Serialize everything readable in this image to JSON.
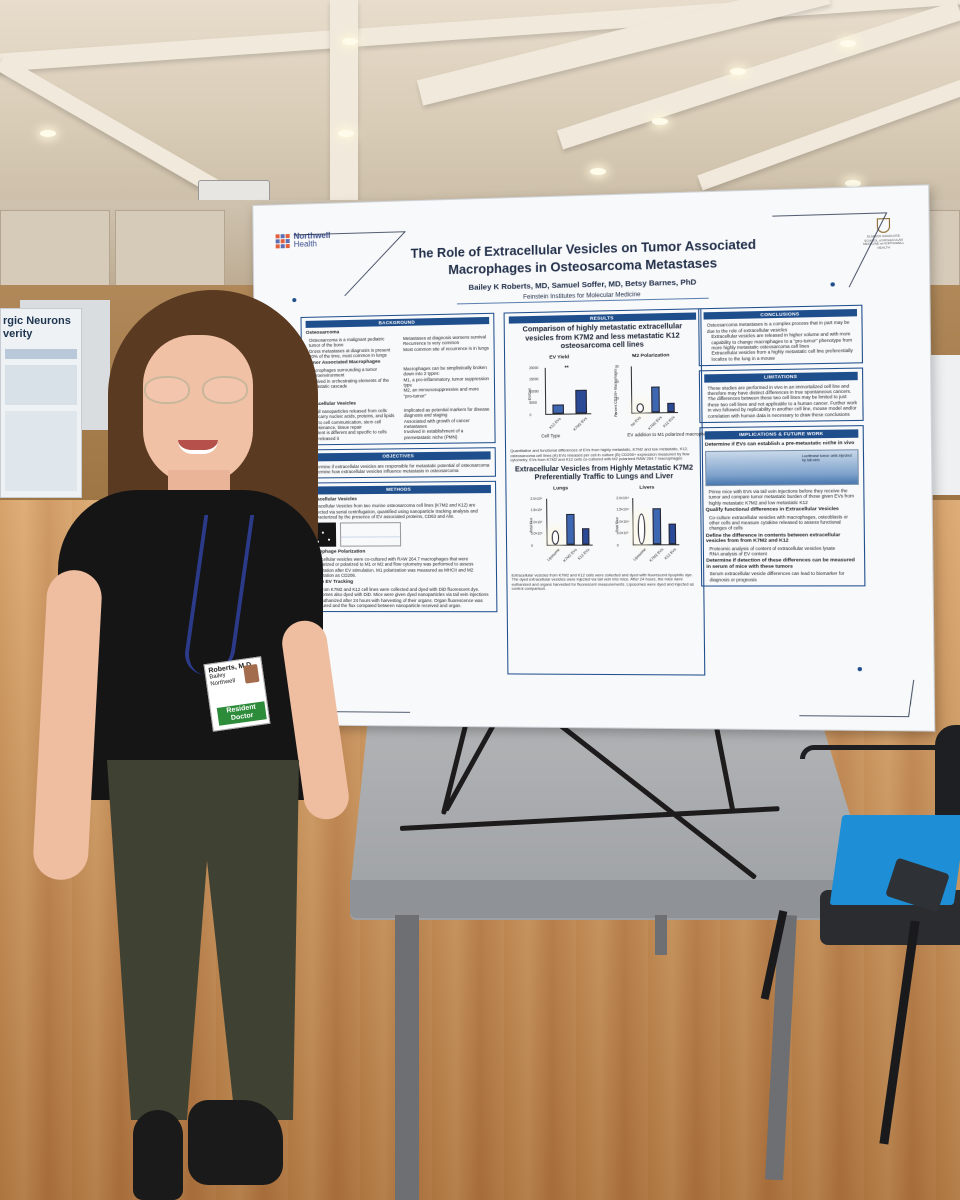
{
  "left_poster": {
    "title": "rgic Neurons\nverity"
  },
  "poster": {
    "logo": {
      "name": "Northwell",
      "sub": "Health"
    },
    "seal_text": "ELMEZZI GRADUATE SCHOOL of MOLECULAR MEDICINE at NORTHWELL HEALTH",
    "title": "The Role of Extracellular Vesicles on Tumor Associated Macrophages in Osteosarcoma Metastases",
    "authors": "Bailey K Roberts, MD, Samuel Soffer, MD, Betsy Barnes, PhD",
    "institution": "Feinstein Institutes for Molecular Medicine",
    "background": {
      "heading": "BACKGROUND",
      "osteo_title": "Osteosarcoma",
      "osteo_left": [
        "Osteosarcoma is a malignant pediatric tumor of the bone",
        "Gross metastases at diagnosis is present 20% of the time, most common in lungs"
      ],
      "osteo_right": [
        "Metastases at diagnosis worsens survival",
        "Recurrence is very common",
        "Most common site of recurrence is in lungs"
      ],
      "tam_title": "Tumor Associated Macrophages",
      "tam_left": [
        "Macrophages surrounding a tumor microenvironment",
        "Involved in orchestrating elements of the metastatic cascade"
      ],
      "tam_right": [
        "Macrophages can be simplistically broken down into 2 types:",
        "M1, a pro-inflammatory, tumor suppression type",
        "M2, an immunosuppressive and more \"pro-tumor\""
      ],
      "ev_title": "Extracellular Vesicles",
      "ev_left": [
        "Small nanoparticles released from cells that carry nucleic acids, proteins, and lipids",
        "Cell to cell communication, stem cell maintenance, tissue repair",
        "Content is different and specific to cells that released it"
      ],
      "ev_right": [
        "Implicated as potential markers for disease diagnosis and staging",
        "Associated with growth of cancer metastases",
        "Involved in establishment of a premetastatic niche (PMN)"
      ]
    },
    "objectives": {
      "heading": "OBJECTIVES",
      "items": [
        "Determine if extracellular vesicles are responsible for metastatic potential of osteosarcoma",
        "Determine how extracellular vesicles influence metastasis in osteosarcoma"
      ]
    },
    "methods": {
      "heading": "METHODS",
      "ev_title": "Extracellular Vesicles",
      "ev_text": "Extracellular Vesicles from two murine osteosarcoma cell lines (K7M2 and K12) are collected via serial centrifugation, quantified using nanoparticle tracking analysis and characterized by the presence of EV associated proteins, CD63 and Alix.",
      "mac_title": "Macrophage Polarization",
      "mac_text": "Extracellular vesicles were co-cultured with RAW 264.7 macrophages that were unpolarized or polarized to M1 or M2 and flow cytometry was performed to assess polarization after EV stimulation. M1 polarization was measured as MHCII and M2 polarization as CD206.",
      "track_title": "In Vivo EV Tracking",
      "track_text": "EVs from K7M2 and K12 cell lines were collected and dyed with DiD fluorescent dye. Liposomes also dyed with DiD. Mice were given dyed nanoparticles via tail vein injections and euthanized after 24 hours with harvesting of their organs. Organ fluorescence was measured and the flux compared between nanoparticle received and organ."
    },
    "results": {
      "heading": "RESULTS",
      "fig1_title": "Comparison of highly metastatic extracellular vesicles from K7M2 and less metastatic K12 osteosarcoma cell lines",
      "fig1_caption": "Quantitative and functional differences of EVs from highly metastatic, K7M2 and low metastatic, K12, osteosarcoma cell lines (A) EVs released per cell in culture (B) CD206+ expression measured by flow cytometry. EVs from K7M2 and K12 cells co-cultured with M2 polarized RAW 264.7 macrophages",
      "fig2_title": "Extracellular Vesicles from Highly Metastatic K7M2 Preferentially Traffic to Lungs and Liver",
      "fig2_caption": "Extracellular vesicles from K7M2 and K12 cells were collected and dyed with fluorescent lipophilic dye. The dyed extracellular vesicles were injected via tail vein into mice. After 24 hours, the mice were euthanized and organs harvested for fluorescent measurements. Liposomes were dyed and injected as control comparison."
    },
    "conclusions": {
      "heading": "CONCLUSIONS",
      "items": [
        "Osteosarcoma metastases is a complex process that in part may be due to the role of extracellular vesicles",
        "Extracellular vesicles are released in higher volume and with more capability to change macrophages to a \"pro-tumor\" phenotype from more highly metastatic osteosarcoma cell lines",
        "Extracellular vesicles from a highly metastatic cell line preferentially localize to the lung in a mouse"
      ]
    },
    "limitations": {
      "heading": "LIMITATIONS",
      "text": "These studies are performed in vivo in an immortalized cell line and therefore may have distinct differences in true spontaneous cancers. The differences between these two cell lines may be limited to just these two cell lines and not applicable to a human cancer. Further work in vivo followed by replicability in another cell line, mouse model and/or correlation with human data is necessary to draw these conclusions"
    },
    "implications": {
      "heading": "IMPLICATIONS & FUTURE WORK",
      "q1": "Determine if EVs can establish a pre-metastatic niche in vivo",
      "img_note": "Luciferase tumor cells injected by tail-vein",
      "q1_text": "Prime mice with EVs via tail vein injections before they receive the tumor and compare tumor metastatic burden of those given EVs from highly metastatic K7M2 and low metastatic K12",
      "q2": "Qualify functional differences in Extracellular Vesicles",
      "q2_text": "Co-culture extracellular vesicles with macrophages, osteoblasts or other cells and measure cytokine released to assess functional changes of cells",
      "q3": "Define the difference in contents between extracellular vesicles from from K7M2 and K12",
      "q3_items": [
        "Proteomic analysis of content of extracellular vesicles lysate",
        "RNA analysis of EV content"
      ],
      "q4": "Determine if detection of these differences can be measured in serum of mice with these tumors",
      "q4_text": "Serum extracellular vesicle differences can lead to biomarker for diagnosis or prognosis"
    }
  },
  "charts_in_poster": {
    "ev_yield": {
      "label": "EV Yield",
      "ylabel": "EV/Cell",
      "xtitle": "Cell Type",
      "ticks": [
        "20000",
        "15000",
        "10000",
        "5000",
        "0"
      ],
      "cats": [
        "K12 EVs",
        "K7M2 EVs"
      ],
      "sig": "**"
    },
    "m2_pol": {
      "label": "M2 Polarization",
      "ylabel": "Percent CD206+ Macrophages",
      "xtitle": "EV addition to M1 polarized macrophages",
      "ticks": [
        "30",
        "20",
        "10",
        "0"
      ],
      "cats": [
        "No EVs",
        "K7M2 EVs",
        "K12 EVs"
      ]
    },
    "lungs": {
      "label": "Lungs",
      "ylabel": "Total Flux",
      "cats": [
        "Liposome",
        "K7M2 EVs",
        "K12 EVs"
      ],
      "ticks": [
        "2.0×10⁹",
        "1.5×10⁹",
        "1.0×10⁹",
        "5.0×10⁸",
        "0"
      ]
    },
    "livers": {
      "label": "Livers",
      "ylabel": "Total Flux",
      "cats": [
        "Liposome",
        "K7M2 EVs",
        "K12 EVs"
      ],
      "ticks": [
        "2.0×10¹⁰",
        "1.5×10¹⁰",
        "1.0×10¹⁰",
        "5.0×10⁹",
        "0"
      ]
    }
  },
  "chart_data": [
    {
      "type": "bar",
      "title": "EV Yield",
      "xlabel": "Cell Type",
      "ylabel": "EV/Cell",
      "categories": [
        "K12 EVs",
        "K7M2 EVs"
      ],
      "values": [
        4000,
        10000
      ],
      "ylim": [
        0,
        20000
      ]
    },
    {
      "type": "bar",
      "title": "M2 Polarization",
      "xlabel": "EV addition to M1 polarized macrophages",
      "ylabel": "Percent CD206+ Macrophages",
      "categories": [
        "No EVs",
        "K7M2 EVs",
        "K12 EVs"
      ],
      "values": [
        6,
        16,
        6
      ],
      "ylim": [
        0,
        30
      ]
    },
    {
      "type": "bar",
      "title": "Lungs",
      "ylabel": "Total Flux",
      "categories": [
        "Liposome",
        "K7M2 EVs",
        "K12 EVs"
      ],
      "values": [
        600000000,
        1300000000,
        700000000
      ],
      "ylim": [
        0,
        2000000000
      ]
    },
    {
      "type": "bar",
      "title": "Livers",
      "ylabel": "Total Flux",
      "categories": [
        "Liposome",
        "K7M2 EVs",
        "K12 EVs"
      ],
      "values": [
        13000000000,
        15000000000,
        8500000000
      ],
      "ylim": [
        0,
        20000000000
      ]
    }
  ],
  "badge": {
    "name": "Roberts, M.D.",
    "sub": "Bailey",
    "org": "Northwell",
    "tag": "Resident Doctor"
  }
}
